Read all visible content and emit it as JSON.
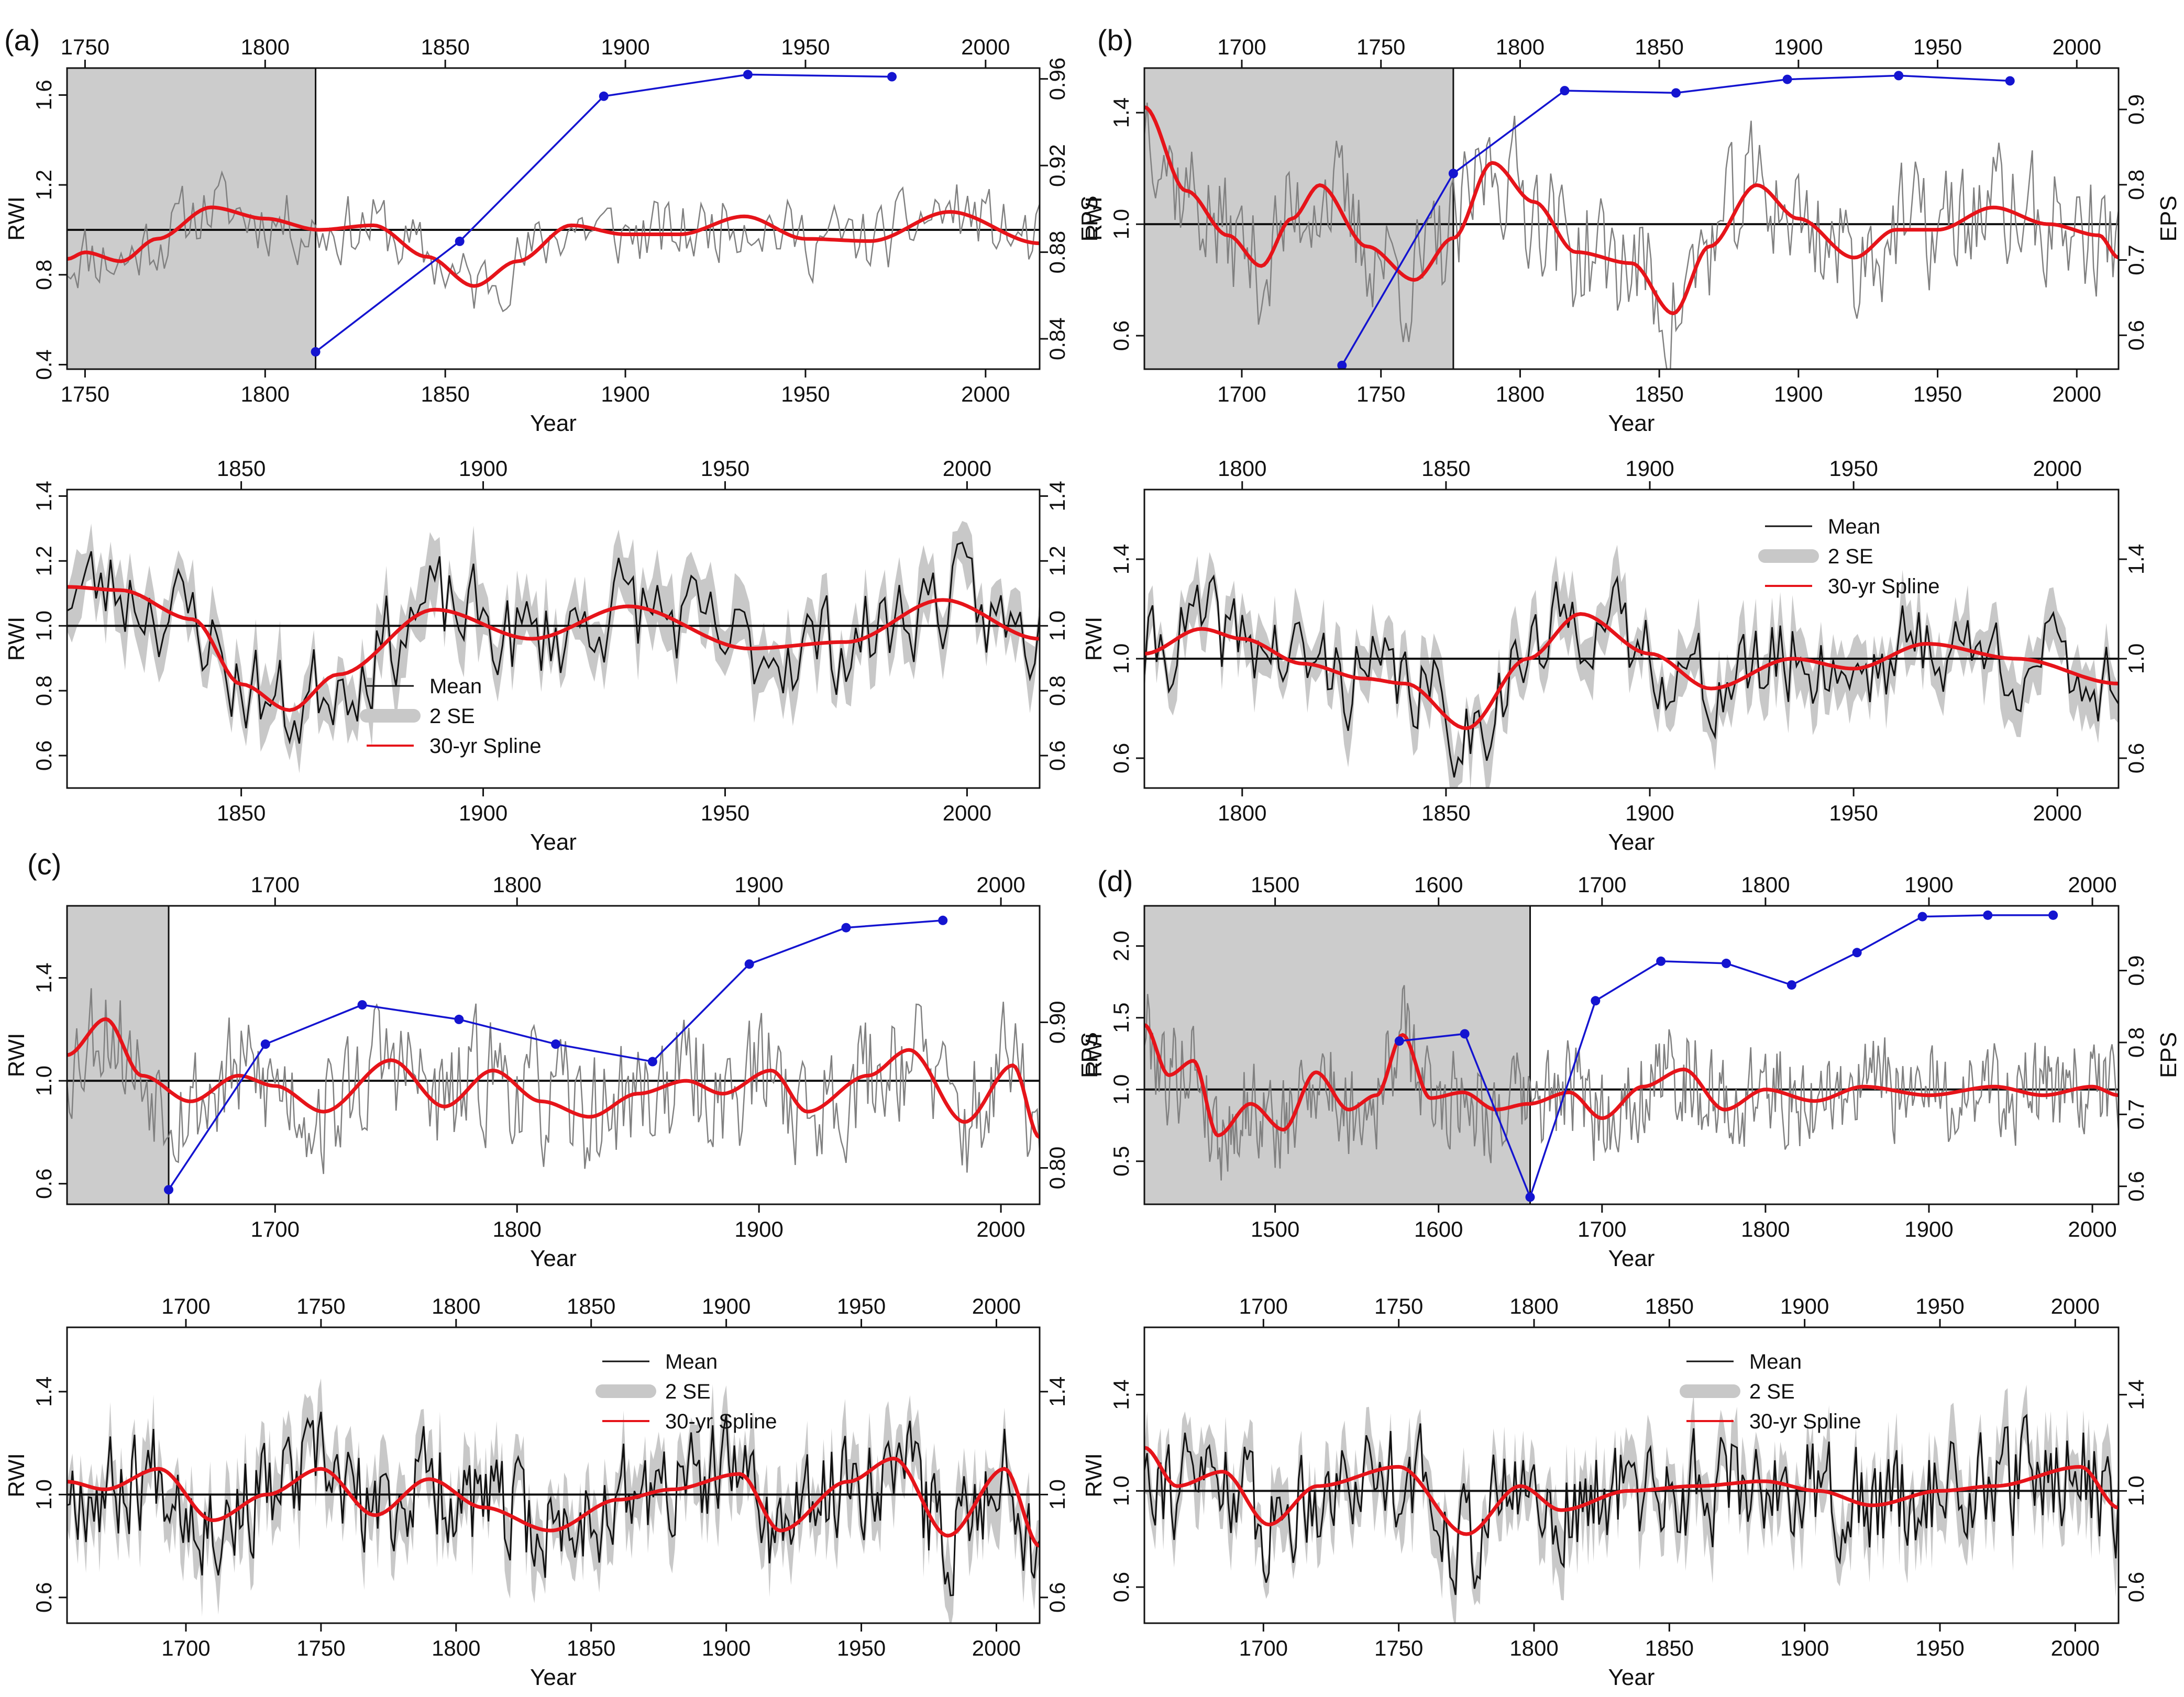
{
  "figure": {
    "panel_labels": [
      "(a)",
      "(b)",
      "(c)",
      "(d)"
    ]
  },
  "chart_data": [
    {
      "panel": "(a)",
      "type": "line",
      "role": "chronology-eps",
      "xlabel": "Year",
      "ylabel": "RWI",
      "y2label": "EPS",
      "xlim": [
        1745,
        2015
      ],
      "ylim": [
        0.38,
        1.72
      ],
      "y2lim": [
        0.826,
        0.965
      ],
      "x_ticks": [
        1750,
        1800,
        1850,
        1900,
        1950,
        2000
      ],
      "y_ticks": [
        "0.4",
        "0.8",
        "1.2",
        "1.6"
      ],
      "y2_ticks": [
        "0.84",
        "0.88",
        "0.92",
        "0.96"
      ],
      "shade_x": [
        1745,
        1814
      ],
      "mean_line": 1.0,
      "spline": {
        "x": [
          1745,
          1750,
          1760,
          1770,
          1785,
          1800,
          1815,
          1830,
          1845,
          1858,
          1870,
          1885,
          1900,
          1915,
          1933,
          1950,
          1968,
          1990,
          2015
        ],
        "y": [
          0.87,
          0.9,
          0.86,
          0.96,
          1.1,
          1.05,
          1.0,
          1.02,
          0.88,
          0.75,
          0.86,
          1.02,
          0.98,
          0.98,
          1.06,
          0.96,
          0.95,
          1.08,
          0.94
        ]
      },
      "eps": {
        "x": [
          1814,
          1854,
          1894,
          1934,
          1974
        ],
        "y": [
          0.834,
          0.885,
          0.952,
          0.962,
          0.961
        ]
      },
      "raw_seed": 11,
      "raw_amp": 0.09
    },
    {
      "panel": "(a)",
      "type": "line",
      "role": "mean-se",
      "xlabel": "Year",
      "ylabel": "RWI",
      "xlim": [
        1814,
        2015
      ],
      "ylim": [
        0.5,
        1.42
      ],
      "x_ticks": [
        1850,
        1900,
        1950,
        2000
      ],
      "y_ticks": [
        "0.6",
        "0.8",
        "1.0",
        "1.2",
        "1.4"
      ],
      "mean_line": 1.0,
      "legend": {
        "mean": "Mean",
        "se": "2 SE",
        "spline": "30-yr Spline"
      },
      "spline": {
        "x": [
          1814,
          1825,
          1840,
          1850,
          1860,
          1870,
          1890,
          1910,
          1930,
          1955,
          1975,
          1995,
          2015
        ],
        "y": [
          1.12,
          1.11,
          1.02,
          0.82,
          0.74,
          0.85,
          1.05,
          0.96,
          1.06,
          0.93,
          0.95,
          1.08,
          0.96
        ]
      },
      "raw_seed": 23,
      "raw_amp": 0.09
    },
    {
      "panel": "(b)",
      "type": "line",
      "role": "chronology-eps",
      "xlabel": "Year",
      "ylabel": "RWI",
      "y2label": "EPS",
      "xlim": [
        1665,
        2015
      ],
      "ylim": [
        0.48,
        1.56
      ],
      "y2lim": [
        0.555,
        0.955
      ],
      "x_ticks": [
        1700,
        1750,
        1800,
        1850,
        1900,
        1950,
        2000
      ],
      "y_ticks": [
        "0.6",
        "1.0",
        "1.4"
      ],
      "y2_ticks": [
        "0.6",
        "0.7",
        "0.8",
        "0.9"
      ],
      "shade_x": [
        1665,
        1776
      ],
      "mean_line": 1.0,
      "spline": {
        "x": [
          1665,
          1680,
          1695,
          1707,
          1718,
          1728,
          1745,
          1762,
          1776,
          1790,
          1805,
          1820,
          1840,
          1855,
          1868,
          1885,
          1900,
          1920,
          1935,
          1950,
          1970,
          1990,
          2008,
          2015
        ],
        "y": [
          1.42,
          1.12,
          0.96,
          0.85,
          1.02,
          1.14,
          0.92,
          0.8,
          0.95,
          1.22,
          1.08,
          0.9,
          0.86,
          0.68,
          0.92,
          1.14,
          1.02,
          0.88,
          0.98,
          0.98,
          1.06,
          1.0,
          0.96,
          0.88
        ]
      },
      "eps": {
        "x": [
          1736,
          1776,
          1816,
          1856,
          1896,
          1936,
          1976
        ],
        "y": [
          0.56,
          0.815,
          0.925,
          0.922,
          0.94,
          0.945,
          0.938
        ]
      },
      "raw_seed": 37,
      "raw_amp": 0.13
    },
    {
      "panel": "(b)",
      "type": "line",
      "role": "mean-se",
      "xlabel": "Year",
      "ylabel": "RWI",
      "xlim": [
        1776,
        2015
      ],
      "ylim": [
        0.48,
        1.68
      ],
      "x_ticks": [
        1800,
        1850,
        1900,
        1950,
        2000
      ],
      "y_ticks": [
        "0.6",
        "1.0",
        "1.4"
      ],
      "mean_line": 1.0,
      "legend": {
        "mean": "Mean",
        "se": "2 SE",
        "spline": "30-yr Spline"
      },
      "spline": {
        "x": [
          1776,
          1790,
          1800,
          1815,
          1830,
          1840,
          1855,
          1870,
          1883,
          1900,
          1915,
          1935,
          1950,
          1968,
          1990,
          2015
        ],
        "y": [
          1.02,
          1.12,
          1.08,
          0.98,
          0.92,
          0.9,
          0.72,
          1.0,
          1.18,
          1.02,
          0.88,
          1.0,
          0.96,
          1.06,
          1.0,
          0.9
        ]
      },
      "raw_seed": 41,
      "raw_amp": 0.11
    },
    {
      "panel": "(c)",
      "type": "line",
      "role": "chronology-eps",
      "xlabel": "Year",
      "ylabel": "RWI",
      "y2label": "EPS",
      "xlim": [
        1614,
        2016
      ],
      "ylim": [
        0.52,
        1.68
      ],
      "y2lim": [
        0.775,
        0.98
      ],
      "x_ticks": [
        1700,
        1800,
        1900,
        2000
      ],
      "y_ticks": [
        "0.6",
        "1.0",
        "1.4"
      ],
      "y2_ticks": [
        "0.80",
        "0.90"
      ],
      "shade_x": [
        1614,
        1656
      ],
      "mean_line": 1.0,
      "spline": {
        "x": [
          1614,
          1630,
          1645,
          1665,
          1685,
          1700,
          1720,
          1748,
          1770,
          1790,
          1810,
          1830,
          1850,
          1870,
          1885,
          1905,
          1920,
          1945,
          1962,
          1985,
          2005,
          2016
        ],
        "y": [
          1.1,
          1.24,
          1.02,
          0.92,
          1.02,
          0.98,
          0.88,
          1.08,
          0.9,
          1.04,
          0.92,
          0.86,
          0.95,
          1.0,
          0.95,
          1.04,
          0.88,
          1.02,
          1.12,
          0.84,
          1.06,
          0.78
        ]
      },
      "eps": {
        "x": [
          1656,
          1696,
          1736,
          1776,
          1816,
          1856,
          1896,
          1936,
          1976
        ],
        "y": [
          0.785,
          0.885,
          0.912,
          0.902,
          0.885,
          0.873,
          0.94,
          0.965,
          0.97
        ]
      },
      "raw_seed": 53,
      "raw_amp": 0.14
    },
    {
      "panel": "(c)",
      "type": "line",
      "role": "mean-se",
      "xlabel": "Year",
      "ylabel": "RWI",
      "xlim": [
        1656,
        2016
      ],
      "ylim": [
        0.5,
        1.65
      ],
      "x_ticks": [
        1700,
        1750,
        1800,
        1850,
        1900,
        1950,
        2000
      ],
      "y_ticks": [
        "0.6",
        "1.0",
        "1.4"
      ],
      "mean_line": 1.0,
      "legend": {
        "mean": "Mean",
        "se": "2 SE",
        "spline": "30-yr Spline"
      },
      "spline": {
        "x": [
          1656,
          1670,
          1690,
          1710,
          1730,
          1750,
          1770,
          1790,
          1810,
          1835,
          1860,
          1880,
          1905,
          1920,
          1945,
          1962,
          1982,
          2003,
          2016
        ],
        "y": [
          1.05,
          1.02,
          1.1,
          0.9,
          1.0,
          1.1,
          0.92,
          1.06,
          0.95,
          0.86,
          0.98,
          1.02,
          1.08,
          0.86,
          1.05,
          1.14,
          0.84,
          1.1,
          0.8
        ]
      },
      "raw_seed": 67,
      "raw_amp": 0.12
    },
    {
      "panel": "(d)",
      "type": "line",
      "role": "chronology-eps",
      "xlabel": "Year",
      "ylabel": "RWI",
      "y2label": "EPS",
      "xlim": [
        1420,
        2016
      ],
      "ylim": [
        0.2,
        2.28
      ],
      "y2lim": [
        0.575,
        0.99
      ],
      "x_ticks": [
        1500,
        1600,
        1700,
        1800,
        1900,
        2000
      ],
      "x2_ticks": [
        1500,
        1600,
        1700,
        1800,
        1900,
        2000
      ],
      "y_ticks": [
        "0.5",
        "1.0",
        "1.5",
        "2.0"
      ],
      "y2_ticks": [
        "0.6",
        "0.7",
        "0.8",
        "0.9"
      ],
      "shade_x": [
        1420,
        1656
      ],
      "mean_line": 1.0,
      "spline": {
        "x": [
          1420,
          1435,
          1450,
          1465,
          1485,
          1505,
          1525,
          1545,
          1562,
          1578,
          1595,
          1615,
          1635,
          1655,
          1680,
          1700,
          1725,
          1750,
          1775,
          1800,
          1830,
          1860,
          1900,
          1940,
          1970,
          2000,
          2016
        ],
        "y": [
          1.45,
          1.1,
          1.2,
          0.68,
          0.9,
          0.72,
          1.12,
          0.86,
          0.96,
          1.38,
          0.94,
          0.98,
          0.86,
          0.9,
          0.98,
          0.8,
          1.02,
          1.14,
          0.86,
          1.0,
          0.92,
          1.02,
          0.96,
          1.02,
          0.96,
          1.02,
          0.96
        ]
      },
      "eps": {
        "x": [
          1576,
          1616,
          1656,
          1696,
          1736,
          1776,
          1816,
          1856,
          1896,
          1936,
          1976
        ],
        "y": [
          0.802,
          0.812,
          0.585,
          0.858,
          0.913,
          0.91,
          0.88,
          0.925,
          0.975,
          0.977,
          0.977
        ]
      },
      "raw_seed": 79,
      "raw_amp": 0.2
    },
    {
      "panel": "(d)",
      "type": "line",
      "role": "mean-se",
      "xlabel": "Year",
      "ylabel": "RWI",
      "xlim": [
        1656,
        2016
      ],
      "ylim": [
        0.45,
        1.68
      ],
      "x_ticks": [
        1700,
        1750,
        1800,
        1850,
        1900,
        1950,
        2000
      ],
      "y_ticks": [
        "0.6",
        "1.0",
        "1.4"
      ],
      "mean_line": 1.0,
      "legend": {
        "mean": "Mean",
        "se": "2 SE",
        "spline": "30-yr Spline"
      },
      "spline": {
        "x": [
          1656,
          1668,
          1685,
          1702,
          1720,
          1750,
          1775,
          1795,
          1810,
          1835,
          1860,
          1885,
          1905,
          1925,
          1950,
          1970,
          2002,
          2016
        ],
        "y": [
          1.18,
          1.02,
          1.08,
          0.86,
          1.02,
          1.1,
          0.82,
          1.02,
          0.92,
          1.0,
          1.02,
          1.04,
          1.0,
          0.94,
          1.0,
          1.02,
          1.1,
          0.93
        ]
      },
      "raw_seed": 91,
      "raw_amp": 0.13
    }
  ],
  "colors": {
    "raw_series": "#808080",
    "mean_series": "#111111",
    "spline": "#e6141a",
    "eps": "#1414d0",
    "shade": "#cccccc",
    "se_band": "#c8c8c8",
    "axis": "#111111"
  }
}
